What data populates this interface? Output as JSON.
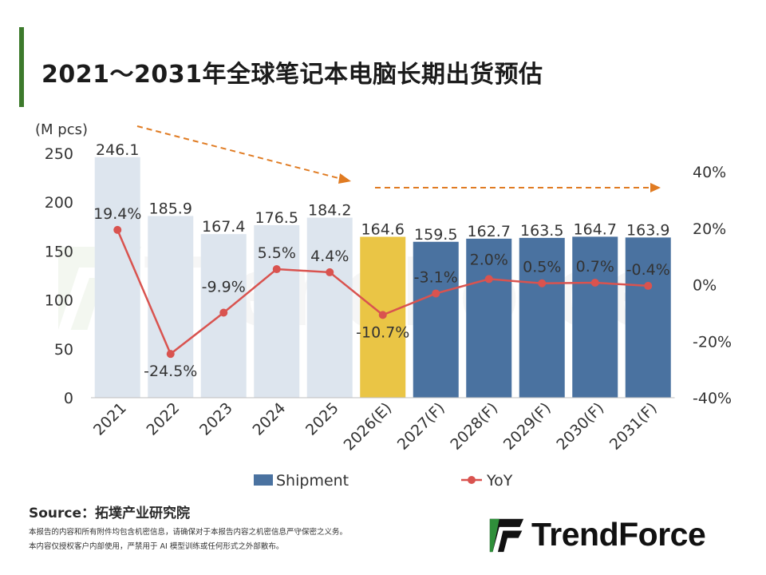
{
  "header": {
    "title": "2021～2031年全球笔记本电脑长期出货预估"
  },
  "chart_data": {
    "type": "bar",
    "categories": [
      "2021",
      "2022",
      "2023",
      "2024",
      "2025",
      "2026(E)",
      "2027(F)",
      "2028(F)",
      "2029(F)",
      "2030(F)",
      "2031(F)"
    ],
    "series": [
      {
        "name": "Shipment",
        "type": "bar",
        "axis": "left",
        "values": [
          246.1,
          185.9,
          167.4,
          176.5,
          184.2,
          164.6,
          159.5,
          162.7,
          163.5,
          164.7,
          163.9
        ],
        "labels": [
          "246.1",
          "185.9",
          "167.4",
          "176.5",
          "184.2",
          "164.6",
          "159.5",
          "162.7",
          "163.5",
          "164.7",
          "163.9"
        ],
        "colors": [
          "#dde5ee",
          "#dde5ee",
          "#dde5ee",
          "#dde5ee",
          "#dde5ee",
          "#eac545",
          "#4a72a0",
          "#4a72a0",
          "#4a72a0",
          "#4a72a0",
          "#4a72a0"
        ]
      },
      {
        "name": "YoY",
        "type": "line",
        "axis": "right",
        "values": [
          19.4,
          -24.5,
          -9.9,
          5.5,
          4.4,
          -10.7,
          -3.1,
          2.0,
          0.5,
          0.7,
          -0.4
        ],
        "labels": [
          "19.4%",
          "-24.5%",
          "-9.9%",
          "5.5%",
          "4.4%",
          "-10.7%",
          "-3.1%",
          "2.0%",
          "0.5%",
          "0.7%",
          "-0.4%"
        ],
        "color": "#d9534f"
      }
    ],
    "y_left": {
      "unit_label": "(M pcs)",
      "ylim": [
        0,
        250
      ],
      "ticks": [
        "0",
        "50",
        "100",
        "150",
        "200",
        "250"
      ]
    },
    "y_right": {
      "ylim": [
        -40,
        40
      ],
      "ticks": [
        "-40%",
        "-20%",
        "0%",
        "20%",
        "40%"
      ]
    },
    "legend": {
      "position": "bottom",
      "items": [
        "Shipment",
        "YoY"
      ]
    },
    "trend_arrows": {
      "color": "#e07b22"
    }
  },
  "watermark": {
    "text": "TrendForce"
  },
  "footer": {
    "source": "Source：拓墣产业研究院",
    "disclaimer_1": "本报告的内容和所有附件均包含机密信息，请确保对于本报告内容之机密信息严守保密之义务。",
    "disclaimer_2": "本内容仅授权客户内部使用，严禁用于 AI 模型训练或任何形式之外部散布。",
    "logo_text": "TrendForce"
  }
}
